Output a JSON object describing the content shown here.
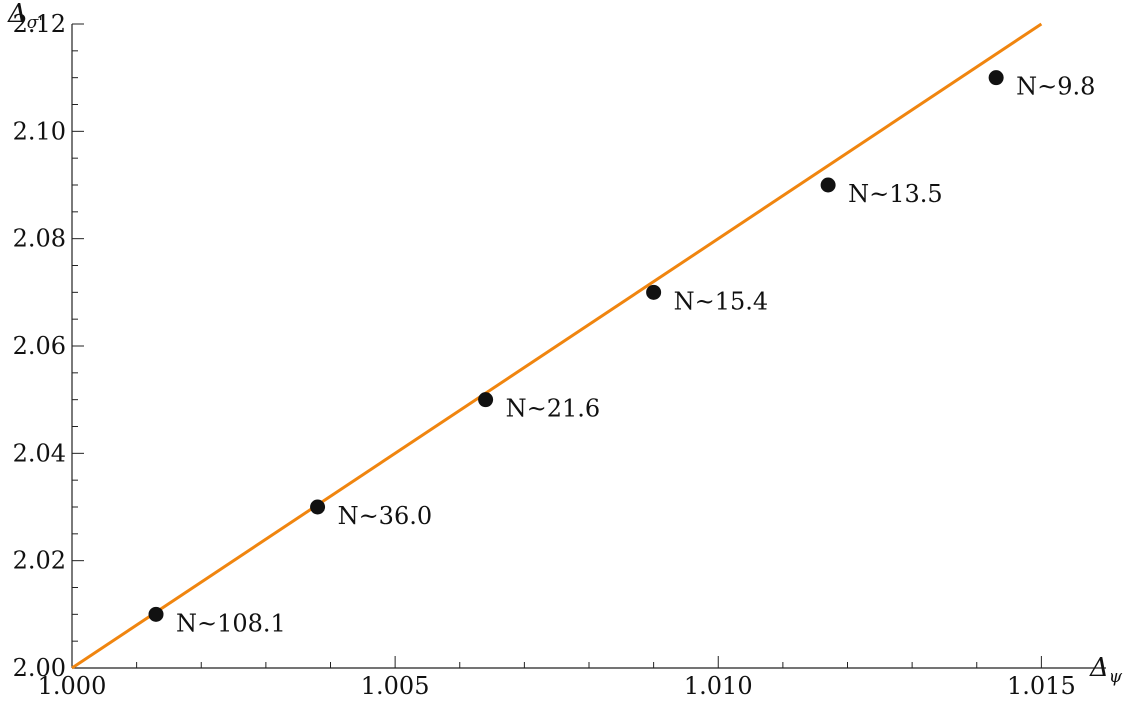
{
  "chart_data": {
    "type": "scatter",
    "xlabel": "Δψ",
    "ylabel": "Δσ'",
    "xlim": [
      1.0,
      1.016
    ],
    "ylim": [
      2.0,
      2.12
    ],
    "x_ticks": [
      1.0,
      1.005,
      1.01,
      1.015
    ],
    "x_tick_labels": [
      "1.000",
      "1.005",
      "1.010",
      "1.015"
    ],
    "y_ticks": [
      2.0,
      2.02,
      2.04,
      2.06,
      2.08,
      2.1,
      2.12
    ],
    "y_tick_labels": [
      "2.00",
      "2.02",
      "2.04",
      "2.06",
      "2.08",
      "2.10",
      "2.12"
    ],
    "series": [
      {
        "points": [
          {
            "x": 1.0013,
            "y": 2.01,
            "label": "N~108.1"
          },
          {
            "x": 1.0038,
            "y": 2.03,
            "label": "N~36.0"
          },
          {
            "x": 1.0064,
            "y": 2.05,
            "label": "N~21.6"
          },
          {
            "x": 1.009,
            "y": 2.07,
            "label": "N~15.4"
          },
          {
            "x": 1.0117,
            "y": 2.09,
            "label": "N~13.5"
          },
          {
            "x": 1.0143,
            "y": 2.11,
            "label": "N~9.8"
          }
        ],
        "color": "#111111"
      }
    ],
    "fit_line": {
      "x": [
        1.0,
        1.015
      ],
      "y": [
        2.0,
        2.12
      ],
      "color": "#f0850f"
    },
    "grid": false,
    "legend": "none"
  }
}
